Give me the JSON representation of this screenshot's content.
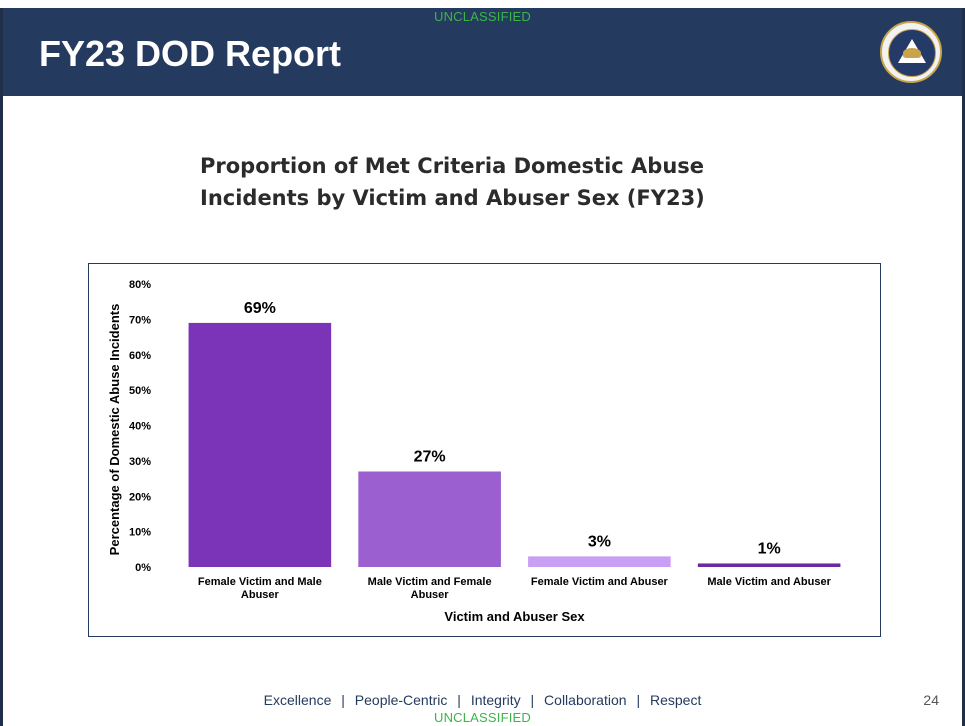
{
  "classification_top": "UNCLASSIFIED",
  "classification_bottom": "UNCLASSIFIED",
  "header": {
    "title": "FY23 DOD Report"
  },
  "footer": {
    "values": [
      "Excellence",
      "People-Centric",
      "Integrity",
      "Collaboration",
      "Respect"
    ],
    "separator": "|",
    "page_number": "24"
  },
  "colors": {
    "header_bg": "#243b5f",
    "classification": "#3bb54a",
    "bar_1": "#7b33b8",
    "bar_2": "#9b5fd0",
    "bar_3": "#c99ef5",
    "bar_4": "#6a2aa0"
  },
  "chart_data": {
    "type": "bar",
    "title_lines": [
      "Proportion of Met Criteria Domestic Abuse",
      "Incidents by Victim and Abuser Sex (FY23)"
    ],
    "categories": [
      [
        "Female Victim and Male",
        "Abuser"
      ],
      [
        "Male Victim and Female",
        "Abuser"
      ],
      [
        "Female Victim and Abuser"
      ],
      [
        "Male Victim and Abuser"
      ]
    ],
    "values": [
      69,
      27,
      3,
      1
    ],
    "data_labels": [
      "69%",
      "27%",
      "3%",
      "1%"
    ],
    "xlabel": "Victim and Abuser Sex",
    "ylabel": "Percentage of Domestic Abuse Incidents",
    "ylim": [
      0,
      80
    ],
    "yticks": [
      0,
      10,
      20,
      30,
      40,
      50,
      60,
      70,
      80
    ],
    "ytick_labels": [
      "0%",
      "10%",
      "20%",
      "30%",
      "40%",
      "50%",
      "60%",
      "70%",
      "80%"
    ],
    "grid": false,
    "legend": "none"
  }
}
